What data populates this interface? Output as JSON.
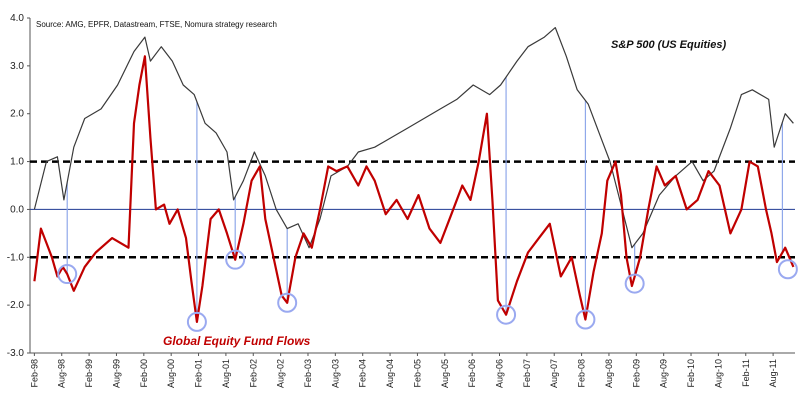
{
  "source_note": "Source: AMG, EPFR, Datastream, FTSE, Nomura  strategy research",
  "chart_data": {
    "type": "line",
    "ylim": [
      -3.0,
      4.0
    ],
    "yticks": [
      "4.0",
      "3.0",
      "2.0",
      "1.0",
      "0.0",
      "-1.0",
      "-2.0",
      "-3.0"
    ],
    "ytick_values": [
      4,
      3,
      2,
      1,
      0,
      -1,
      -2,
      -3
    ],
    "x_tick_labels": [
      "Feb-98",
      "Aug-98",
      "Feb-99",
      "Aug-99",
      "Feb-00",
      "Aug-00",
      "Feb-01",
      "Aug-01",
      "Feb-02",
      "Aug-02",
      "Feb-03",
      "Aug-03",
      "Feb-04",
      "Aug-04",
      "Feb-05",
      "Aug-05",
      "Feb-06",
      "Aug-06",
      "Feb-07",
      "Aug-07",
      "Feb-08",
      "Aug-08",
      "Feb-09",
      "Aug-09",
      "Feb-10",
      "Aug-10",
      "Feb-11",
      "Aug-11"
    ],
    "threshold_lines": [
      1.0,
      -1.0
    ],
    "zero_line": 0.0,
    "grid": false,
    "series": [
      {
        "name": "S&P 500 (US Equities)",
        "color": "#3a3a3a",
        "x": [
          1998.08,
          1998.3,
          1998.5,
          1998.62,
          1998.8,
          1999.0,
          1999.3,
          1999.6,
          1999.9,
          2000.1,
          2000.2,
          2000.4,
          2000.6,
          2000.8,
          2001.0,
          2001.2,
          2001.4,
          2001.6,
          2001.72,
          2001.9,
          2002.1,
          2002.3,
          2002.5,
          2002.7,
          2002.9,
          2003.1,
          2003.3,
          2003.5,
          2003.8,
          2004.0,
          2004.3,
          2004.6,
          2004.9,
          2005.2,
          2005.5,
          2005.8,
          2006.1,
          2006.4,
          2006.6,
          2006.9,
          2007.1,
          2007.4,
          2007.6,
          2007.8,
          2008.0,
          2008.2,
          2008.4,
          2008.6,
          2008.8,
          2009.0,
          2009.2,
          2009.5,
          2009.8,
          2010.1,
          2010.3,
          2010.5,
          2010.8,
          2011.0,
          2011.2,
          2011.5,
          2011.6,
          2011.8,
          2011.95
        ],
        "y": [
          0.0,
          1.0,
          1.1,
          0.2,
          1.3,
          1.9,
          2.1,
          2.6,
          3.3,
          3.6,
          3.1,
          3.4,
          3.1,
          2.6,
          2.4,
          1.8,
          1.6,
          1.2,
          0.2,
          0.6,
          1.2,
          0.7,
          0.0,
          -0.4,
          -0.3,
          -0.8,
          -0.2,
          0.7,
          0.9,
          1.2,
          1.3,
          1.5,
          1.7,
          1.9,
          2.1,
          2.3,
          2.6,
          2.4,
          2.6,
          3.1,
          3.4,
          3.6,
          3.8,
          3.2,
          2.5,
          2.2,
          1.6,
          1.0,
          0.1,
          -0.8,
          -0.5,
          0.3,
          0.7,
          1.0,
          0.6,
          0.8,
          1.7,
          2.4,
          2.5,
          2.3,
          1.3,
          2.0,
          1.8
        ]
      },
      {
        "name": "Global Equity Fund Flows",
        "color": "#c00000",
        "x": [
          1998.08,
          1998.2,
          1998.3,
          1998.4,
          1998.5,
          1998.6,
          1998.68,
          1998.8,
          1999.0,
          1999.2,
          1999.5,
          1999.8,
          1999.9,
          2000.0,
          2000.1,
          2000.2,
          2000.3,
          2000.45,
          2000.55,
          2000.7,
          2000.85,
          2000.95,
          2001.05,
          2001.15,
          2001.3,
          2001.45,
          2001.6,
          2001.75,
          2001.9,
          2002.05,
          2002.2,
          2002.3,
          2002.45,
          2002.6,
          2002.7,
          2002.85,
          2003.0,
          2003.15,
          2003.3,
          2003.45,
          2003.6,
          2003.8,
          2004.0,
          2004.15,
          2004.3,
          2004.5,
          2004.7,
          2004.9,
          2005.1,
          2005.3,
          2005.5,
          2005.7,
          2005.9,
          2006.05,
          2006.2,
          2006.35,
          2006.45,
          2006.55,
          2006.7,
          2006.9,
          2007.1,
          2007.3,
          2007.5,
          2007.7,
          2007.9,
          2008.05,
          2008.15,
          2008.3,
          2008.45,
          2008.55,
          2008.7,
          2008.8,
          2008.9,
          2009.0,
          2009.05,
          2009.15,
          2009.3,
          2009.45,
          2009.6,
          2009.8,
          2010.0,
          2010.2,
          2010.4,
          2010.6,
          2010.8,
          2011.0,
          2011.15,
          2011.3,
          2011.45,
          2011.55,
          2011.65,
          2011.8,
          2011.95
        ],
        "y": [
          -1.5,
          -0.4,
          -0.7,
          -1.0,
          -1.4,
          -1.2,
          -1.35,
          -1.7,
          -1.2,
          -0.9,
          -0.6,
          -0.8,
          1.8,
          2.6,
          3.2,
          1.5,
          0.0,
          0.1,
          -0.3,
          0.0,
          -0.6,
          -1.5,
          -2.35,
          -1.6,
          -0.2,
          0.0,
          -0.5,
          -1.05,
          -0.3,
          0.6,
          0.9,
          -0.2,
          -1.0,
          -1.8,
          -1.95,
          -1.0,
          -0.5,
          -0.8,
          0.0,
          0.9,
          0.8,
          0.9,
          0.5,
          0.9,
          0.6,
          -0.1,
          0.2,
          -0.2,
          0.3,
          -0.4,
          -0.7,
          -0.1,
          0.5,
          0.2,
          1.0,
          2.0,
          0.2,
          -1.9,
          -2.2,
          -1.5,
          -0.9,
          -0.6,
          -0.3,
          -1.4,
          -1.0,
          -1.8,
          -2.3,
          -1.3,
          -0.5,
          0.6,
          1.0,
          0.3,
          -1.0,
          -1.6,
          -1.4,
          -1.0,
          0.0,
          0.9,
          0.5,
          0.7,
          0.0,
          0.2,
          0.8,
          0.5,
          -0.5,
          0.0,
          1.0,
          0.9,
          0.0,
          -0.5,
          -1.1,
          -0.8,
          -1.2
        ]
      }
    ],
    "circles": [
      {
        "x": 1998.68,
        "y": -1.35
      },
      {
        "x": 2001.05,
        "y": -2.35
      },
      {
        "x": 2001.75,
        "y": -1.05
      },
      {
        "x": 2002.7,
        "y": -1.95
      },
      {
        "x": 2006.7,
        "y": -2.2
      },
      {
        "x": 2008.15,
        "y": -2.3
      },
      {
        "x": 2009.05,
        "y": -1.55
      },
      {
        "x": 2011.85,
        "y": -1.25
      }
    ],
    "drop_lines": [
      1998.68,
      2001.05,
      2001.75,
      2002.7,
      2006.7,
      2008.15,
      2009.05,
      2011.75
    ],
    "annotations": {
      "black_label": "S&P 500 (US Equities)",
      "red_label": "Global Equity Fund Flows"
    }
  }
}
